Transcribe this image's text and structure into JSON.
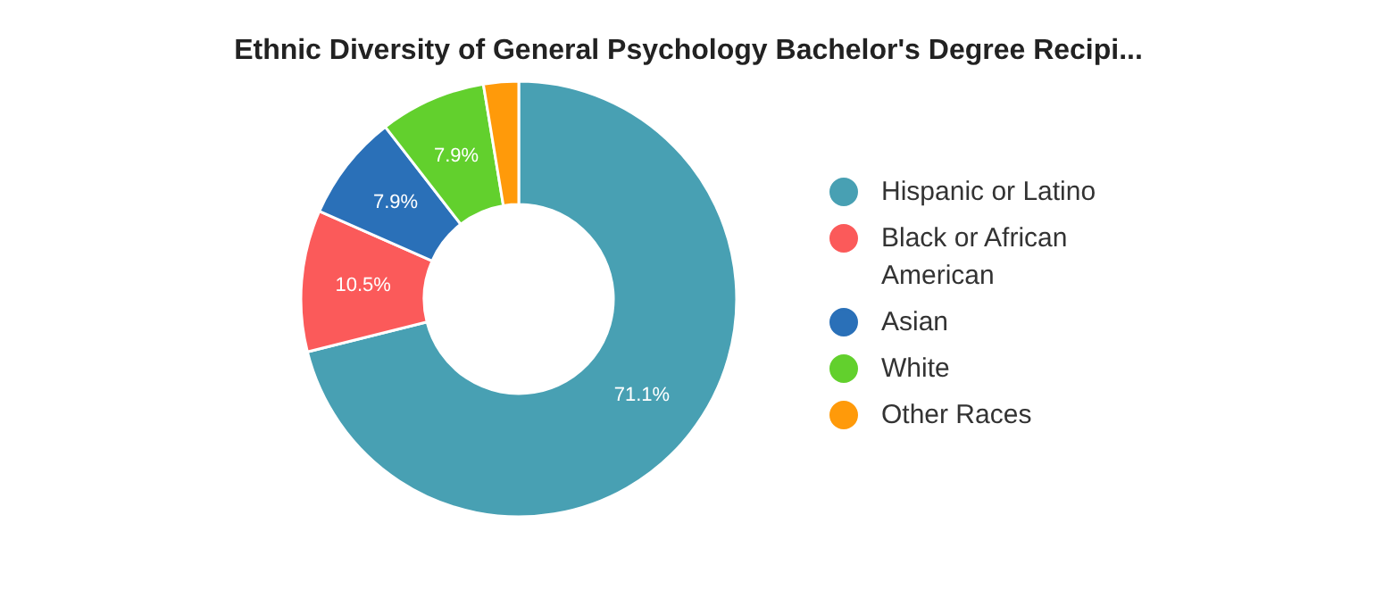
{
  "chart_data": {
    "type": "donut",
    "title": "Ethnic Diversity of General Psychology Bachelor's Degree Recipi...",
    "categories": [
      "Hispanic or Latino",
      "Black or African American",
      "Asian",
      "White",
      "Other Races"
    ],
    "values": [
      71.1,
      10.5,
      7.9,
      7.9,
      2.6
    ],
    "colors": [
      "#48a0b3",
      "#fb5a5a",
      "#2a70b8",
      "#62d02d",
      "#ff9a0a"
    ],
    "value_labels": [
      "71.1%",
      "10.5%",
      "7.9%",
      "7.9%",
      null
    ],
    "legend": "right"
  }
}
